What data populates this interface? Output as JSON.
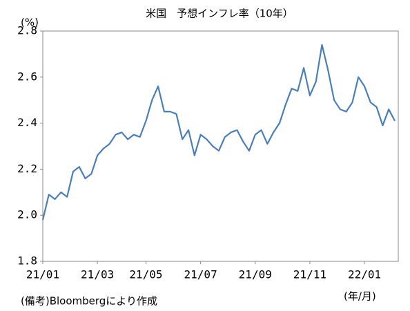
{
  "chart_data": {
    "type": "line",
    "title": "米国　予想インフレ率（10年）",
    "y_unit": "(%)",
    "x_unit": "(年/月)",
    "note": "(備考)Bloombergにより作成",
    "categories": [
      "21/01",
      null,
      null,
      null,
      null,
      null,
      null,
      null,
      null,
      "21/03",
      null,
      null,
      null,
      null,
      null,
      null,
      null,
      "21/05",
      null,
      null,
      null,
      null,
      null,
      null,
      null,
      null,
      "21/07",
      null,
      null,
      null,
      null,
      null,
      null,
      null,
      null,
      "21/09",
      null,
      null,
      null,
      null,
      null,
      null,
      null,
      null,
      "21/11",
      null,
      null,
      null,
      null,
      null,
      null,
      null,
      null,
      "22/01",
      null,
      null,
      null,
      null,
      null
    ],
    "series": [
      {
        "name": "予想インフレ率",
        "color": "#4a7ebb",
        "values": [
          1.98,
          2.09,
          2.07,
          2.1,
          2.08,
          2.19,
          2.21,
          2.16,
          2.18,
          2.26,
          2.29,
          2.31,
          2.35,
          2.36,
          2.33,
          2.35,
          2.34,
          2.41,
          2.5,
          2.56,
          2.45,
          2.45,
          2.44,
          2.33,
          2.37,
          2.26,
          2.35,
          2.33,
          2.3,
          2.28,
          2.34,
          2.36,
          2.37,
          2.32,
          2.28,
          2.35,
          2.37,
          2.31,
          2.36,
          2.4,
          2.48,
          2.55,
          2.54,
          2.64,
          2.52,
          2.58,
          2.74,
          2.63,
          2.5,
          2.46,
          2.45,
          2.49,
          2.6,
          2.56,
          2.49,
          2.47,
          2.39,
          2.46,
          2.41
        ]
      }
    ],
    "ylim": [
      1.8,
      2.8
    ],
    "yticks": [
      1.8,
      {
        "value": 2,
        "label": "2.0"
      },
      2.2,
      2.4,
      2.6,
      2.8
    ]
  }
}
